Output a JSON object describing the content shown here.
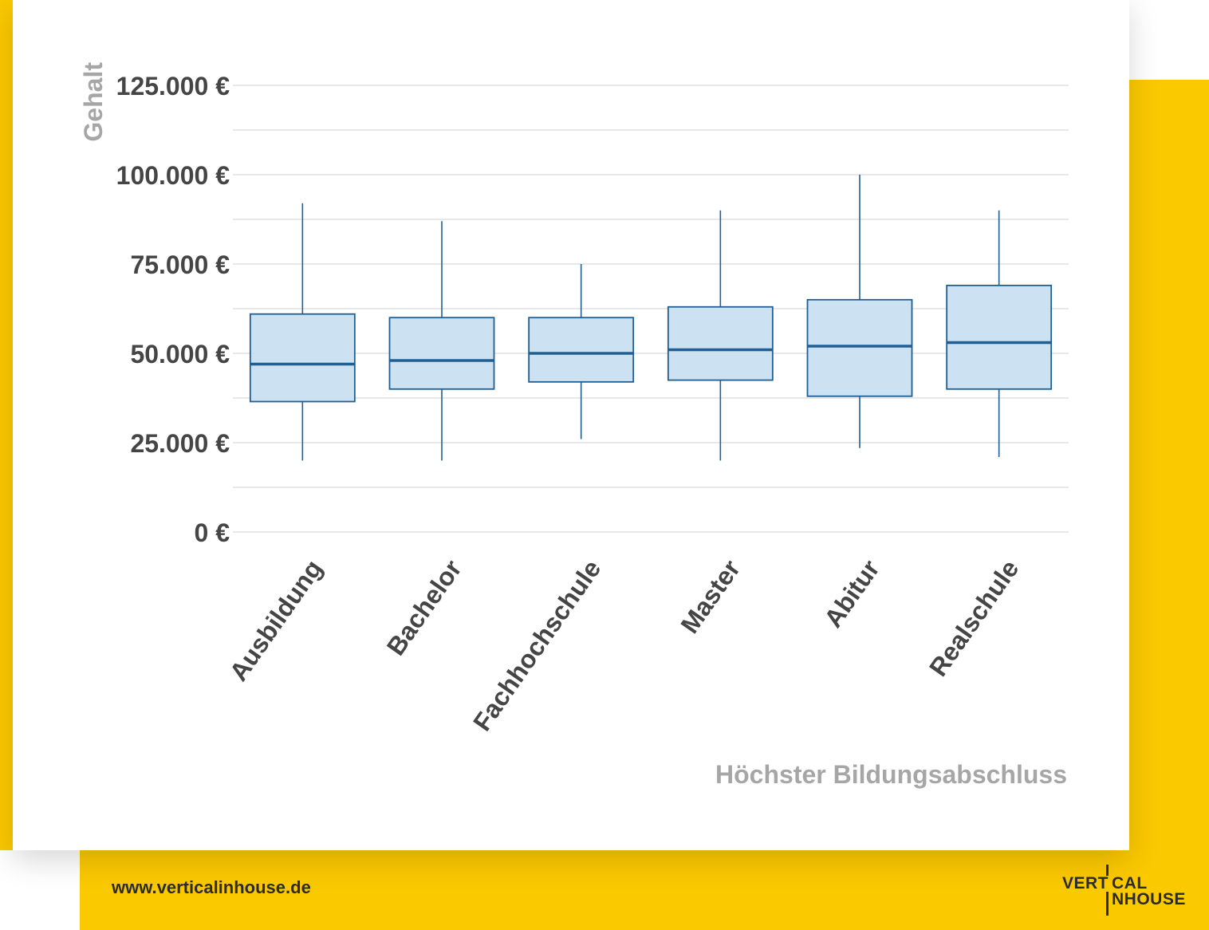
{
  "brand": {
    "accent_color": "#fbc900",
    "website": "www.verticalinhouse.de",
    "logo_line1_left": "VERT",
    "logo_line1_right": "CAL",
    "logo_line2_right": "NHOUSE"
  },
  "chart_data": {
    "type": "boxplot",
    "xlabel": "Höchster Bildungsabschluss",
    "ylabel": "Gehalt",
    "ylim": [
      0,
      125000
    ],
    "y_ticks": [
      0,
      25000,
      50000,
      75000,
      100000,
      125000
    ],
    "y_tick_labels": [
      "0 €",
      "25.000 €",
      "50.000 €",
      "75.000 €",
      "100.000 €",
      "125.000 €"
    ],
    "grid": true,
    "categories": [
      "Ausbildung",
      "Bachelor",
      "Fachhochschule",
      "Master",
      "Abitur",
      "Realschule"
    ],
    "boxes": [
      {
        "min": 20000,
        "q1": 36500,
        "median": 47000,
        "q3": 61000,
        "max": 92000
      },
      {
        "min": 20000,
        "q1": 40000,
        "median": 48000,
        "q3": 60000,
        "max": 87000
      },
      {
        "min": 26000,
        "q1": 42000,
        "median": 50000,
        "q3": 60000,
        "max": 75000
      },
      {
        "min": 20000,
        "q1": 42500,
        "median": 51000,
        "q3": 63000,
        "max": 90000
      },
      {
        "min": 23500,
        "q1": 38000,
        "median": 52000,
        "q3": 65000,
        "max": 100000
      },
      {
        "min": 21000,
        "q1": 40000,
        "median": 53000,
        "q3": 69000,
        "max": 90000
      }
    ],
    "box_fill": "#c9dff0",
    "box_stroke": "#1f5f94",
    "grid_color": "#d9d9d9"
  }
}
